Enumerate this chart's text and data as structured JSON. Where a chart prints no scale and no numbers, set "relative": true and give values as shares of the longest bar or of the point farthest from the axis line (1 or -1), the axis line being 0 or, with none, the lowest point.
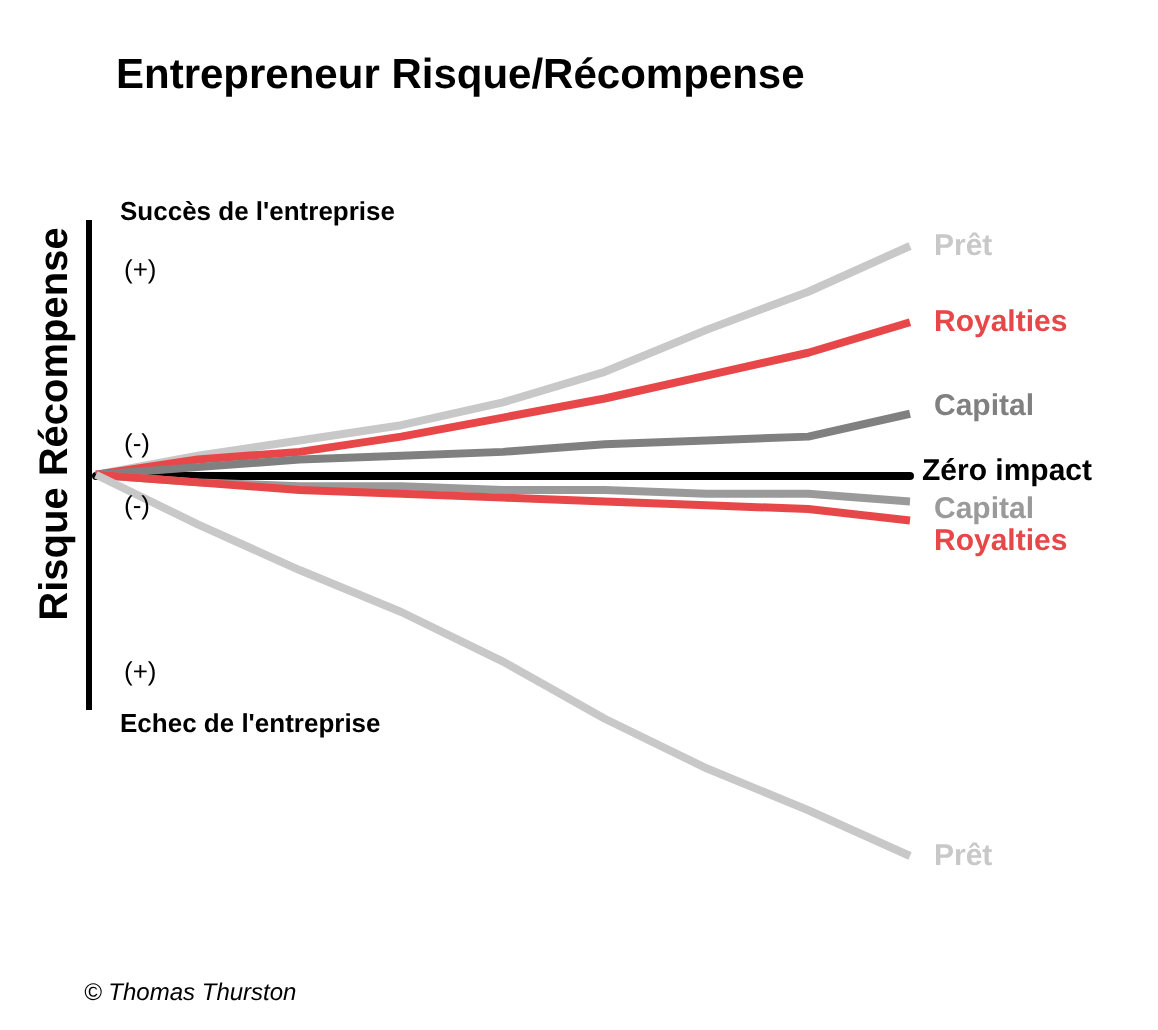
{
  "chart_data": {
    "type": "line",
    "relative": true,
    "title": "Entrepreneur Risque/Récompense",
    "ylabel": "Risque  Récompense",
    "legend": false,
    "marker": "none",
    "categories": [
      null,
      null,
      null,
      null,
      null,
      null,
      null,
      null,
      null
    ],
    "series": [
      {
        "name": "Prêt",
        "color": "#c8c8c8",
        "values": [
          0,
          0.05,
          0.09,
          0.13,
          0.19,
          0.27,
          0.38,
          0.48,
          0.6
        ]
      },
      {
        "name": "Royalties",
        "color": "#e8474a",
        "values": [
          0,
          0.04,
          0.06,
          0.1,
          0.15,
          0.2,
          0.26,
          0.32,
          0.4
        ]
      },
      {
        "name": "Capital",
        "color": "#808080",
        "values": [
          0,
          0.02,
          0.04,
          0.05,
          0.06,
          0.08,
          0.09,
          0.1,
          0.16
        ]
      },
      {
        "name": "Capital",
        "color": "#9a9a9a",
        "values": [
          0,
          -0.02,
          -0.03,
          -0.03,
          -0.04,
          -0.04,
          -0.05,
          -0.05,
          -0.07
        ]
      },
      {
        "name": "Royalties",
        "color": "#e8474a",
        "values": [
          0,
          -0.02,
          -0.04,
          -0.05,
          -0.06,
          -0.07,
          -0.08,
          -0.09,
          -0.12
        ]
      },
      {
        "name": "Prêt",
        "color": "#c8c8c8",
        "values": [
          0,
          -0.13,
          -0.25,
          -0.36,
          -0.49,
          -0.64,
          -0.77,
          -0.88,
          -1
        ]
      }
    ],
    "annotations": [
      "Succès de l'entreprise",
      "(+)",
      "(-)",
      "(-)",
      "(+)",
      "Echec de l'entreprise",
      "© Thomas Thurston",
      "Zéro impact"
    ]
  }
}
